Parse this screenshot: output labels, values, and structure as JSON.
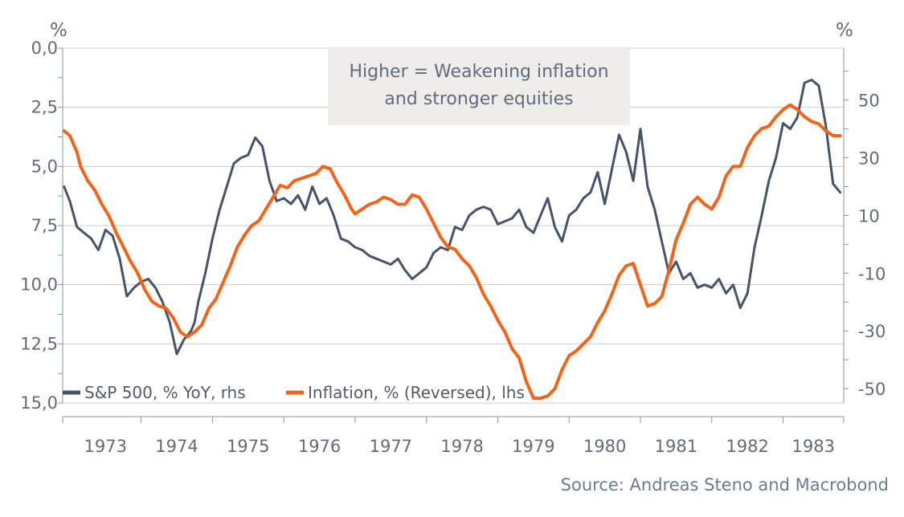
{
  "chart_data": {
    "type": "line",
    "title": "",
    "x_range": [
      1972.9,
      1983.85
    ],
    "x_ticks": [
      1973,
      1974,
      1975,
      1976,
      1977,
      1978,
      1979,
      1980,
      1981,
      1982,
      1983
    ],
    "x_tick_labels": [
      "1973",
      "1974",
      "1975",
      "1976",
      "1977",
      "1978",
      "1979",
      "1980",
      "1981",
      "1982",
      "1983"
    ],
    "y_left": {
      "label": "%",
      "reversed": true,
      "range": [
        0,
        15
      ],
      "ticks": [
        0,
        2.5,
        5,
        7.5,
        10,
        12.5,
        15
      ],
      "tick_labels": [
        "0,0",
        "2,5",
        "5,0",
        "7,5",
        "10,0",
        "12,5",
        "15,0"
      ]
    },
    "y_right": {
      "label": "%",
      "range": [
        -55,
        68
      ],
      "ticks": [
        50,
        30,
        10,
        -10,
        -30,
        -50
      ],
      "tick_labels": [
        "50",
        "30",
        "10",
        "-10",
        "-30",
        "-50"
      ]
    },
    "series": [
      {
        "name": "S&P 500, % YoY, rhs",
        "axis": "right",
        "color": "#44546a",
        "x": [
          1972.92,
          1973.0,
          1973.1,
          1973.2,
          1973.3,
          1973.4,
          1973.5,
          1973.6,
          1973.7,
          1973.8,
          1973.9,
          1974.0,
          1974.1,
          1974.2,
          1974.3,
          1974.4,
          1974.5,
          1974.6,
          1974.7,
          1974.75,
          1974.8,
          1974.9,
          1975.0,
          1975.1,
          1975.2,
          1975.3,
          1975.4,
          1975.5,
          1975.6,
          1975.7,
          1975.8,
          1975.9,
          1976.0,
          1976.1,
          1976.2,
          1976.3,
          1976.4,
          1976.5,
          1976.6,
          1976.7,
          1976.8,
          1976.9,
          1977.0,
          1977.1,
          1977.2,
          1977.3,
          1977.4,
          1977.5,
          1977.6,
          1977.7,
          1977.8,
          1977.9,
          1978.0,
          1978.1,
          1978.2,
          1978.3,
          1978.4,
          1978.5,
          1978.6,
          1978.7,
          1978.8,
          1978.9,
          1979.0,
          1979.1,
          1979.2,
          1979.3,
          1979.4,
          1979.5,
          1979.6,
          1979.7,
          1979.8,
          1979.9,
          1980.0,
          1980.1,
          1980.2,
          1980.3,
          1980.4,
          1980.5,
          1980.6,
          1980.7,
          1980.8,
          1980.9,
          1981.0,
          1981.1,
          1981.2,
          1981.3,
          1981.4,
          1981.5,
          1981.6,
          1981.7,
          1981.8,
          1981.9,
          1982.0,
          1982.1,
          1982.2,
          1982.3,
          1982.4,
          1982.5,
          1982.6,
          1982.7,
          1982.8,
          1982.9,
          1983.0,
          1983.1,
          1983.2,
          1983.3,
          1983.4,
          1983.5,
          1983.6,
          1983.7,
          1983.8
        ],
        "values": [
          20,
          15,
          6,
          4,
          2,
          -2,
          5,
          3,
          -5,
          -18,
          -15,
          -13,
          -12,
          -15,
          -20,
          -27,
          -38,
          -33,
          -30,
          -27,
          -20,
          -10,
          2,
          12,
          20,
          28,
          30,
          31,
          37,
          34,
          22,
          15,
          16,
          14,
          17,
          12,
          20,
          14,
          16,
          10,
          2,
          1,
          -1,
          -2,
          -4,
          -5,
          -6,
          -7,
          -5,
          -9,
          -12,
          -10,
          -8,
          -3,
          -1,
          -2,
          6,
          5,
          10,
          12,
          13,
          12,
          7,
          8,
          9,
          12,
          6,
          4,
          10,
          16,
          6,
          1,
          10,
          12,
          16,
          18,
          25,
          14,
          26,
          38,
          32,
          22,
          40,
          20,
          12,
          1,
          -10,
          -6,
          -12,
          -10,
          -15,
          -14,
          -15,
          -12,
          -17,
          -14,
          -22,
          -17,
          -1,
          10,
          22,
          30,
          42,
          40,
          44,
          56,
          57,
          55,
          41,
          21,
          18
        ]
      },
      {
        "name": "Inflation, % (Reversed), lhs",
        "axis": "left",
        "color": "#f26419",
        "x": [
          1972.92,
          1973.0,
          1973.1,
          1973.15,
          1973.25,
          1973.35,
          1973.45,
          1973.55,
          1973.65,
          1973.75,
          1973.85,
          1973.95,
          1974.05,
          1974.15,
          1974.25,
          1974.35,
          1974.45,
          1974.55,
          1974.65,
          1974.75,
          1974.85,
          1974.95,
          1975.05,
          1975.15,
          1975.25,
          1975.35,
          1975.45,
          1975.55,
          1975.65,
          1975.75,
          1975.85,
          1975.95,
          1976.05,
          1976.15,
          1976.25,
          1976.35,
          1976.45,
          1976.55,
          1976.65,
          1976.75,
          1976.85,
          1976.95,
          1977.0,
          1977.1,
          1977.2,
          1977.3,
          1977.4,
          1977.5,
          1977.6,
          1977.7,
          1977.8,
          1977.9,
          1978.0,
          1978.1,
          1978.2,
          1978.3,
          1978.4,
          1978.5,
          1978.6,
          1978.7,
          1978.8,
          1978.9,
          1979.0,
          1979.1,
          1979.2,
          1979.3,
          1979.4,
          1979.5,
          1979.6,
          1979.7,
          1979.8,
          1979.9,
          1980.0,
          1980.1,
          1980.2,
          1980.3,
          1980.4,
          1980.5,
          1980.6,
          1980.7,
          1980.8,
          1980.9,
          1981.0,
          1981.1,
          1981.2,
          1981.3,
          1981.4,
          1981.5,
          1981.6,
          1981.7,
          1981.8,
          1981.9,
          1982.0,
          1982.1,
          1982.2,
          1982.3,
          1982.4,
          1982.5,
          1982.6,
          1982.7,
          1982.8,
          1982.9,
          1983.0,
          1983.1,
          1983.2,
          1983.3,
          1983.4,
          1983.5,
          1983.6,
          1983.7,
          1983.8
        ],
        "values": [
          3.5,
          3.7,
          4.4,
          5.0,
          5.6,
          6.0,
          6.6,
          7.1,
          7.8,
          8.4,
          9.0,
          9.5,
          10.2,
          10.7,
          10.9,
          11.0,
          11.4,
          12.0,
          12.2,
          12.0,
          11.7,
          11.0,
          10.6,
          9.9,
          9.2,
          8.4,
          7.9,
          7.5,
          7.3,
          6.8,
          6.3,
          5.8,
          5.9,
          5.6,
          5.5,
          5.4,
          5.3,
          5.0,
          5.1,
          5.7,
          6.2,
          6.8,
          7.0,
          6.8,
          6.6,
          6.5,
          6.3,
          6.4,
          6.6,
          6.6,
          6.2,
          6.3,
          6.8,
          7.4,
          8.0,
          8.4,
          8.5,
          8.9,
          9.2,
          9.7,
          10.4,
          10.9,
          11.5,
          12.0,
          12.7,
          13.1,
          14.1,
          14.8,
          14.8,
          14.7,
          14.4,
          13.6,
          13.0,
          12.8,
          12.5,
          12.2,
          11.6,
          11.1,
          10.4,
          9.6,
          9.2,
          9.1,
          10.0,
          10.9,
          10.8,
          10.5,
          9.4,
          8.1,
          7.4,
          6.6,
          6.3,
          6.6,
          6.8,
          6.3,
          5.4,
          5.0,
          5.0,
          4.2,
          3.7,
          3.4,
          3.3,
          2.9,
          2.6,
          2.4,
          2.6,
          2.9,
          3.1,
          3.2,
          3.5,
          3.7,
          3.7
        ]
      }
    ],
    "legend": {
      "position": "bottom-left",
      "entries": [
        "S&P 500, % YoY, rhs",
        "Inflation, % (Reversed), lhs"
      ]
    },
    "annotation": {
      "line1": "Higher = Weakening inflation",
      "line2": "and stronger equities"
    },
    "source": "Source: Andreas Steno and Macrobond",
    "gridlines": true
  }
}
